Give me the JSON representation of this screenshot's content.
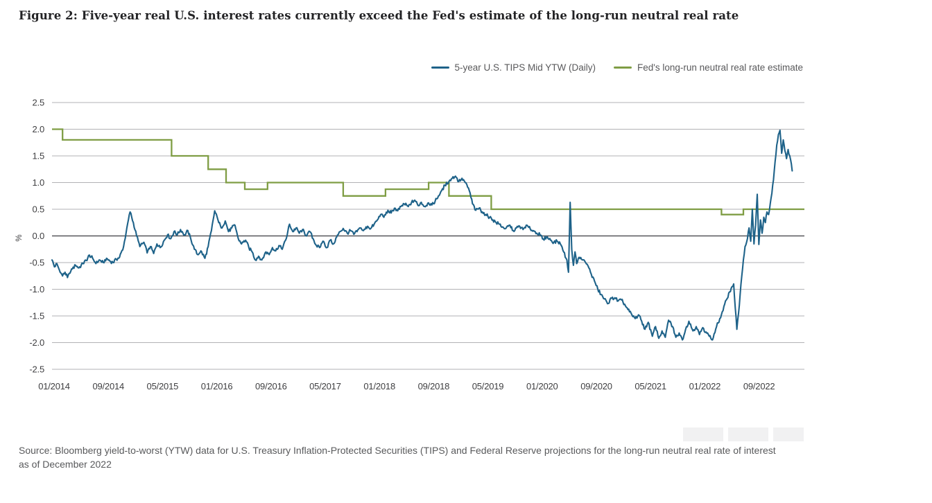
{
  "figure": {
    "title": "Figure 2: Five-year real U.S. interest rates currently exceed the Fed's estimate of the long-run neutral real rate"
  },
  "source_note_line1": "Source: Bloomberg yield-to-worst (YTW) data for U.S. Treasury Inflation-Protected Securities (TIPS) and Federal Reserve projections for the long-run neutral real rate of interest",
  "source_note_line2": "as of December 2022",
  "chart_data": {
    "type": "line",
    "title": "Figure 2: Five-year real U.S. interest rates currently exceed the Fed's estimate of the long-run neutral real rate",
    "xlabel": "",
    "ylabel": "%",
    "ylim": [
      -2.5,
      2.5
    ],
    "y_ticks": [
      2.5,
      2.0,
      1.5,
      1.0,
      0.5,
      0.0,
      -0.5,
      -1.0,
      -1.5,
      -2.0,
      -2.5
    ],
    "x_domain": [
      2014.0,
      2023.25
    ],
    "x_tick_values": [
      2014.0,
      2014.667,
      2015.333,
      2016.0,
      2016.667,
      2017.333,
      2018.0,
      2018.667,
      2019.333,
      2020.0,
      2020.667,
      2021.333,
      2022.0,
      2022.667
    ],
    "x_tick_labels": [
      "01/2014",
      "09/2014",
      "05/2015",
      "01/2016",
      "09/2016",
      "05/2017",
      "01/2018",
      "09/2018",
      "05/2019",
      "01/2020",
      "09/2020",
      "05/2021",
      "01/2022",
      "09/2022"
    ],
    "grid": true,
    "legend_position": "top-right",
    "colors": {
      "grid": "#b2b2b5",
      "zero_line": "#55565a",
      "tick_text": "#3e3e40"
    },
    "series": [
      {
        "name": "5-year U.S. TIPS Mid YTW (Daily)",
        "color": "#1e6289",
        "style": "daily",
        "points": [
          [
            2014.0,
            -0.45
          ],
          [
            2014.03,
            -0.58
          ],
          [
            2014.06,
            -0.52
          ],
          [
            2014.1,
            -0.68
          ],
          [
            2014.13,
            -0.75
          ],
          [
            2014.16,
            -0.68
          ],
          [
            2014.19,
            -0.78
          ],
          [
            2014.22,
            -0.7
          ],
          [
            2014.25,
            -0.62
          ],
          [
            2014.29,
            -0.55
          ],
          [
            2014.33,
            -0.6
          ],
          [
            2014.38,
            -0.52
          ],
          [
            2014.42,
            -0.46
          ],
          [
            2014.46,
            -0.36
          ],
          [
            2014.5,
            -0.42
          ],
          [
            2014.54,
            -0.52
          ],
          [
            2014.58,
            -0.45
          ],
          [
            2014.63,
            -0.5
          ],
          [
            2014.67,
            -0.42
          ],
          [
            2014.71,
            -0.47
          ],
          [
            2014.75,
            -0.5
          ],
          [
            2014.79,
            -0.44
          ],
          [
            2014.83,
            -0.4
          ],
          [
            2014.88,
            -0.2
          ],
          [
            2014.92,
            0.15
          ],
          [
            2014.96,
            0.45
          ],
          [
            2015.0,
            0.25
          ],
          [
            2015.04,
            0.0
          ],
          [
            2015.08,
            -0.2
          ],
          [
            2015.13,
            -0.12
          ],
          [
            2015.17,
            -0.32
          ],
          [
            2015.21,
            -0.2
          ],
          [
            2015.25,
            -0.33
          ],
          [
            2015.29,
            -0.15
          ],
          [
            2015.33,
            -0.22
          ],
          [
            2015.38,
            -0.08
          ],
          [
            2015.42,
            0.02
          ],
          [
            2015.46,
            -0.05
          ],
          [
            2015.5,
            0.08
          ],
          [
            2015.54,
            0.02
          ],
          [
            2015.58,
            0.12
          ],
          [
            2015.63,
            0.02
          ],
          [
            2015.67,
            0.1
          ],
          [
            2015.71,
            -0.08
          ],
          [
            2015.75,
            -0.25
          ],
          [
            2015.79,
            -0.35
          ],
          [
            2015.83,
            -0.28
          ],
          [
            2015.88,
            -0.42
          ],
          [
            2015.92,
            -0.2
          ],
          [
            2015.96,
            0.1
          ],
          [
            2016.0,
            0.47
          ],
          [
            2016.04,
            0.3
          ],
          [
            2016.08,
            0.15
          ],
          [
            2016.13,
            0.28
          ],
          [
            2016.17,
            0.08
          ],
          [
            2016.21,
            0.15
          ],
          [
            2016.25,
            0.2
          ],
          [
            2016.29,
            -0.05
          ],
          [
            2016.33,
            -0.15
          ],
          [
            2016.38,
            -0.08
          ],
          [
            2016.42,
            -0.22
          ],
          [
            2016.46,
            -0.3
          ],
          [
            2016.5,
            -0.45
          ],
          [
            2016.54,
            -0.38
          ],
          [
            2016.58,
            -0.45
          ],
          [
            2016.63,
            -0.3
          ],
          [
            2016.67,
            -0.35
          ],
          [
            2016.71,
            -0.22
          ],
          [
            2016.75,
            -0.28
          ],
          [
            2016.79,
            -0.18
          ],
          [
            2016.83,
            -0.25
          ],
          [
            2016.88,
            -0.05
          ],
          [
            2016.92,
            0.22
          ],
          [
            2016.96,
            0.08
          ],
          [
            2017.0,
            0.15
          ],
          [
            2017.04,
            0.05
          ],
          [
            2017.08,
            0.12
          ],
          [
            2017.13,
            0.0
          ],
          [
            2017.17,
            0.08
          ],
          [
            2017.21,
            -0.05
          ],
          [
            2017.25,
            -0.18
          ],
          [
            2017.29,
            -0.22
          ],
          [
            2017.33,
            -0.1
          ],
          [
            2017.38,
            -0.22
          ],
          [
            2017.42,
            -0.08
          ],
          [
            2017.46,
            -0.15
          ],
          [
            2017.5,
            -0.02
          ],
          [
            2017.54,
            0.08
          ],
          [
            2017.58,
            0.14
          ],
          [
            2017.63,
            0.05
          ],
          [
            2017.67,
            0.1
          ],
          [
            2017.71,
            0.03
          ],
          [
            2017.75,
            0.08
          ],
          [
            2017.79,
            0.15
          ],
          [
            2017.83,
            0.1
          ],
          [
            2017.88,
            0.18
          ],
          [
            2017.92,
            0.14
          ],
          [
            2017.96,
            0.22
          ],
          [
            2018.0,
            0.3
          ],
          [
            2018.04,
            0.4
          ],
          [
            2018.08,
            0.35
          ],
          [
            2018.13,
            0.48
          ],
          [
            2018.17,
            0.43
          ],
          [
            2018.21,
            0.52
          ],
          [
            2018.25,
            0.47
          ],
          [
            2018.29,
            0.55
          ],
          [
            2018.33,
            0.6
          ],
          [
            2018.38,
            0.55
          ],
          [
            2018.42,
            0.63
          ],
          [
            2018.46,
            0.67
          ],
          [
            2018.5,
            0.57
          ],
          [
            2018.54,
            0.63
          ],
          [
            2018.58,
            0.55
          ],
          [
            2018.63,
            0.62
          ],
          [
            2018.67,
            0.58
          ],
          [
            2018.71,
            0.65
          ],
          [
            2018.75,
            0.75
          ],
          [
            2018.79,
            0.85
          ],
          [
            2018.83,
            0.95
          ],
          [
            2018.88,
            1.02
          ],
          [
            2018.92,
            1.08
          ],
          [
            2018.96,
            1.12
          ],
          [
            2019.0,
            1.02
          ],
          [
            2019.04,
            1.08
          ],
          [
            2019.08,
            1.0
          ],
          [
            2019.13,
            0.85
          ],
          [
            2019.17,
            0.6
          ],
          [
            2019.21,
            0.48
          ],
          [
            2019.25,
            0.52
          ],
          [
            2019.29,
            0.45
          ],
          [
            2019.33,
            0.4
          ],
          [
            2019.38,
            0.35
          ],
          [
            2019.42,
            0.3
          ],
          [
            2019.46,
            0.25
          ],
          [
            2019.5,
            0.22
          ],
          [
            2019.54,
            0.17
          ],
          [
            2019.58,
            0.14
          ],
          [
            2019.63,
            0.2
          ],
          [
            2019.67,
            0.1
          ],
          [
            2019.71,
            0.15
          ],
          [
            2019.75,
            0.18
          ],
          [
            2019.79,
            0.12
          ],
          [
            2019.83,
            0.2
          ],
          [
            2019.88,
            0.13
          ],
          [
            2019.92,
            0.1
          ],
          [
            2019.96,
            0.05
          ],
          [
            2020.0,
            0.02
          ],
          [
            2020.04,
            -0.06
          ],
          [
            2020.08,
            -0.02
          ],
          [
            2020.13,
            -0.08
          ],
          [
            2020.17,
            -0.12
          ],
          [
            2020.21,
            -0.1
          ],
          [
            2020.25,
            -0.15
          ],
          [
            2020.29,
            -0.3
          ],
          [
            2020.33,
            -0.45
          ],
          [
            2020.35,
            -0.68
          ],
          [
            2020.37,
            0.63
          ],
          [
            2020.39,
            -0.25
          ],
          [
            2020.41,
            -0.55
          ],
          [
            2020.43,
            -0.3
          ],
          [
            2020.45,
            -0.52
          ],
          [
            2020.48,
            -0.4
          ],
          [
            2020.52,
            -0.45
          ],
          [
            2020.56,
            -0.5
          ],
          [
            2020.6,
            -0.6
          ],
          [
            2020.63,
            -0.72
          ],
          [
            2020.67,
            -0.85
          ],
          [
            2020.71,
            -1.0
          ],
          [
            2020.75,
            -1.1
          ],
          [
            2020.79,
            -1.18
          ],
          [
            2020.83,
            -1.27
          ],
          [
            2020.88,
            -1.17
          ],
          [
            2020.92,
            -1.16
          ],
          [
            2020.96,
            -1.22
          ],
          [
            2021.0,
            -1.2
          ],
          [
            2021.04,
            -1.28
          ],
          [
            2021.08,
            -1.38
          ],
          [
            2021.13,
            -1.48
          ],
          [
            2021.17,
            -1.55
          ],
          [
            2021.21,
            -1.48
          ],
          [
            2021.25,
            -1.6
          ],
          [
            2021.29,
            -1.75
          ],
          [
            2021.33,
            -1.62
          ],
          [
            2021.38,
            -1.88
          ],
          [
            2021.42,
            -1.7
          ],
          [
            2021.46,
            -1.92
          ],
          [
            2021.5,
            -1.78
          ],
          [
            2021.54,
            -1.9
          ],
          [
            2021.58,
            -1.58
          ],
          [
            2021.63,
            -1.7
          ],
          [
            2021.67,
            -1.9
          ],
          [
            2021.71,
            -1.82
          ],
          [
            2021.75,
            -1.95
          ],
          [
            2021.79,
            -1.75
          ],
          [
            2021.83,
            -1.6
          ],
          [
            2021.88,
            -1.78
          ],
          [
            2021.92,
            -1.7
          ],
          [
            2021.96,
            -1.85
          ],
          [
            2022.0,
            -1.72
          ],
          [
            2022.04,
            -1.8
          ],
          [
            2022.08,
            -1.88
          ],
          [
            2022.12,
            -1.95
          ],
          [
            2022.17,
            -1.7
          ],
          [
            2022.21,
            -1.55
          ],
          [
            2022.25,
            -1.4
          ],
          [
            2022.29,
            -1.2
          ],
          [
            2022.33,
            -1.05
          ],
          [
            2022.36,
            -0.95
          ],
          [
            2022.38,
            -0.9
          ],
          [
            2022.4,
            -1.35
          ],
          [
            2022.42,
            -1.75
          ],
          [
            2022.44,
            -1.45
          ],
          [
            2022.46,
            -1.1
          ],
          [
            2022.48,
            -0.75
          ],
          [
            2022.5,
            -0.45
          ],
          [
            2022.52,
            -0.2
          ],
          [
            2022.55,
            -0.05
          ],
          [
            2022.57,
            0.15
          ],
          [
            2022.59,
            -0.1
          ],
          [
            2022.61,
            0.5
          ],
          [
            2022.63,
            -0.15
          ],
          [
            2022.65,
            0.2
          ],
          [
            2022.67,
            0.78
          ],
          [
            2022.69,
            -0.16
          ],
          [
            2022.71,
            0.3
          ],
          [
            2022.73,
            0.05
          ],
          [
            2022.75,
            0.35
          ],
          [
            2022.77,
            0.25
          ],
          [
            2022.79,
            0.45
          ],
          [
            2022.81,
            0.4
          ],
          [
            2022.83,
            0.6
          ],
          [
            2022.85,
            0.8
          ],
          [
            2022.87,
            1.05
          ],
          [
            2022.89,
            1.4
          ],
          [
            2022.91,
            1.7
          ],
          [
            2022.93,
            1.9
          ],
          [
            2022.95,
            1.98
          ],
          [
            2022.97,
            1.55
          ],
          [
            2022.99,
            1.8
          ],
          [
            2023.01,
            1.6
          ],
          [
            2023.03,
            1.45
          ],
          [
            2023.05,
            1.62
          ],
          [
            2023.07,
            1.5
          ],
          [
            2023.09,
            1.35
          ],
          [
            2023.1,
            1.22
          ]
        ]
      },
      {
        "name": "Fed's long-run neutral real rate estimate",
        "color": "#7f9d44",
        "style": "step",
        "x_end": 2023.25,
        "points": [
          [
            2014.0,
            2.0
          ],
          [
            2014.13,
            1.8
          ],
          [
            2015.47,
            1.5
          ],
          [
            2015.92,
            1.25
          ],
          [
            2016.14,
            1.0
          ],
          [
            2016.37,
            0.875
          ],
          [
            2016.65,
            1.0
          ],
          [
            2017.58,
            0.75
          ],
          [
            2018.1,
            0.875
          ],
          [
            2018.63,
            1.0
          ],
          [
            2018.88,
            0.75
          ],
          [
            2019.4,
            0.5
          ],
          [
            2022.23,
            0.4
          ],
          [
            2022.5,
            0.5
          ]
        ]
      }
    ]
  }
}
